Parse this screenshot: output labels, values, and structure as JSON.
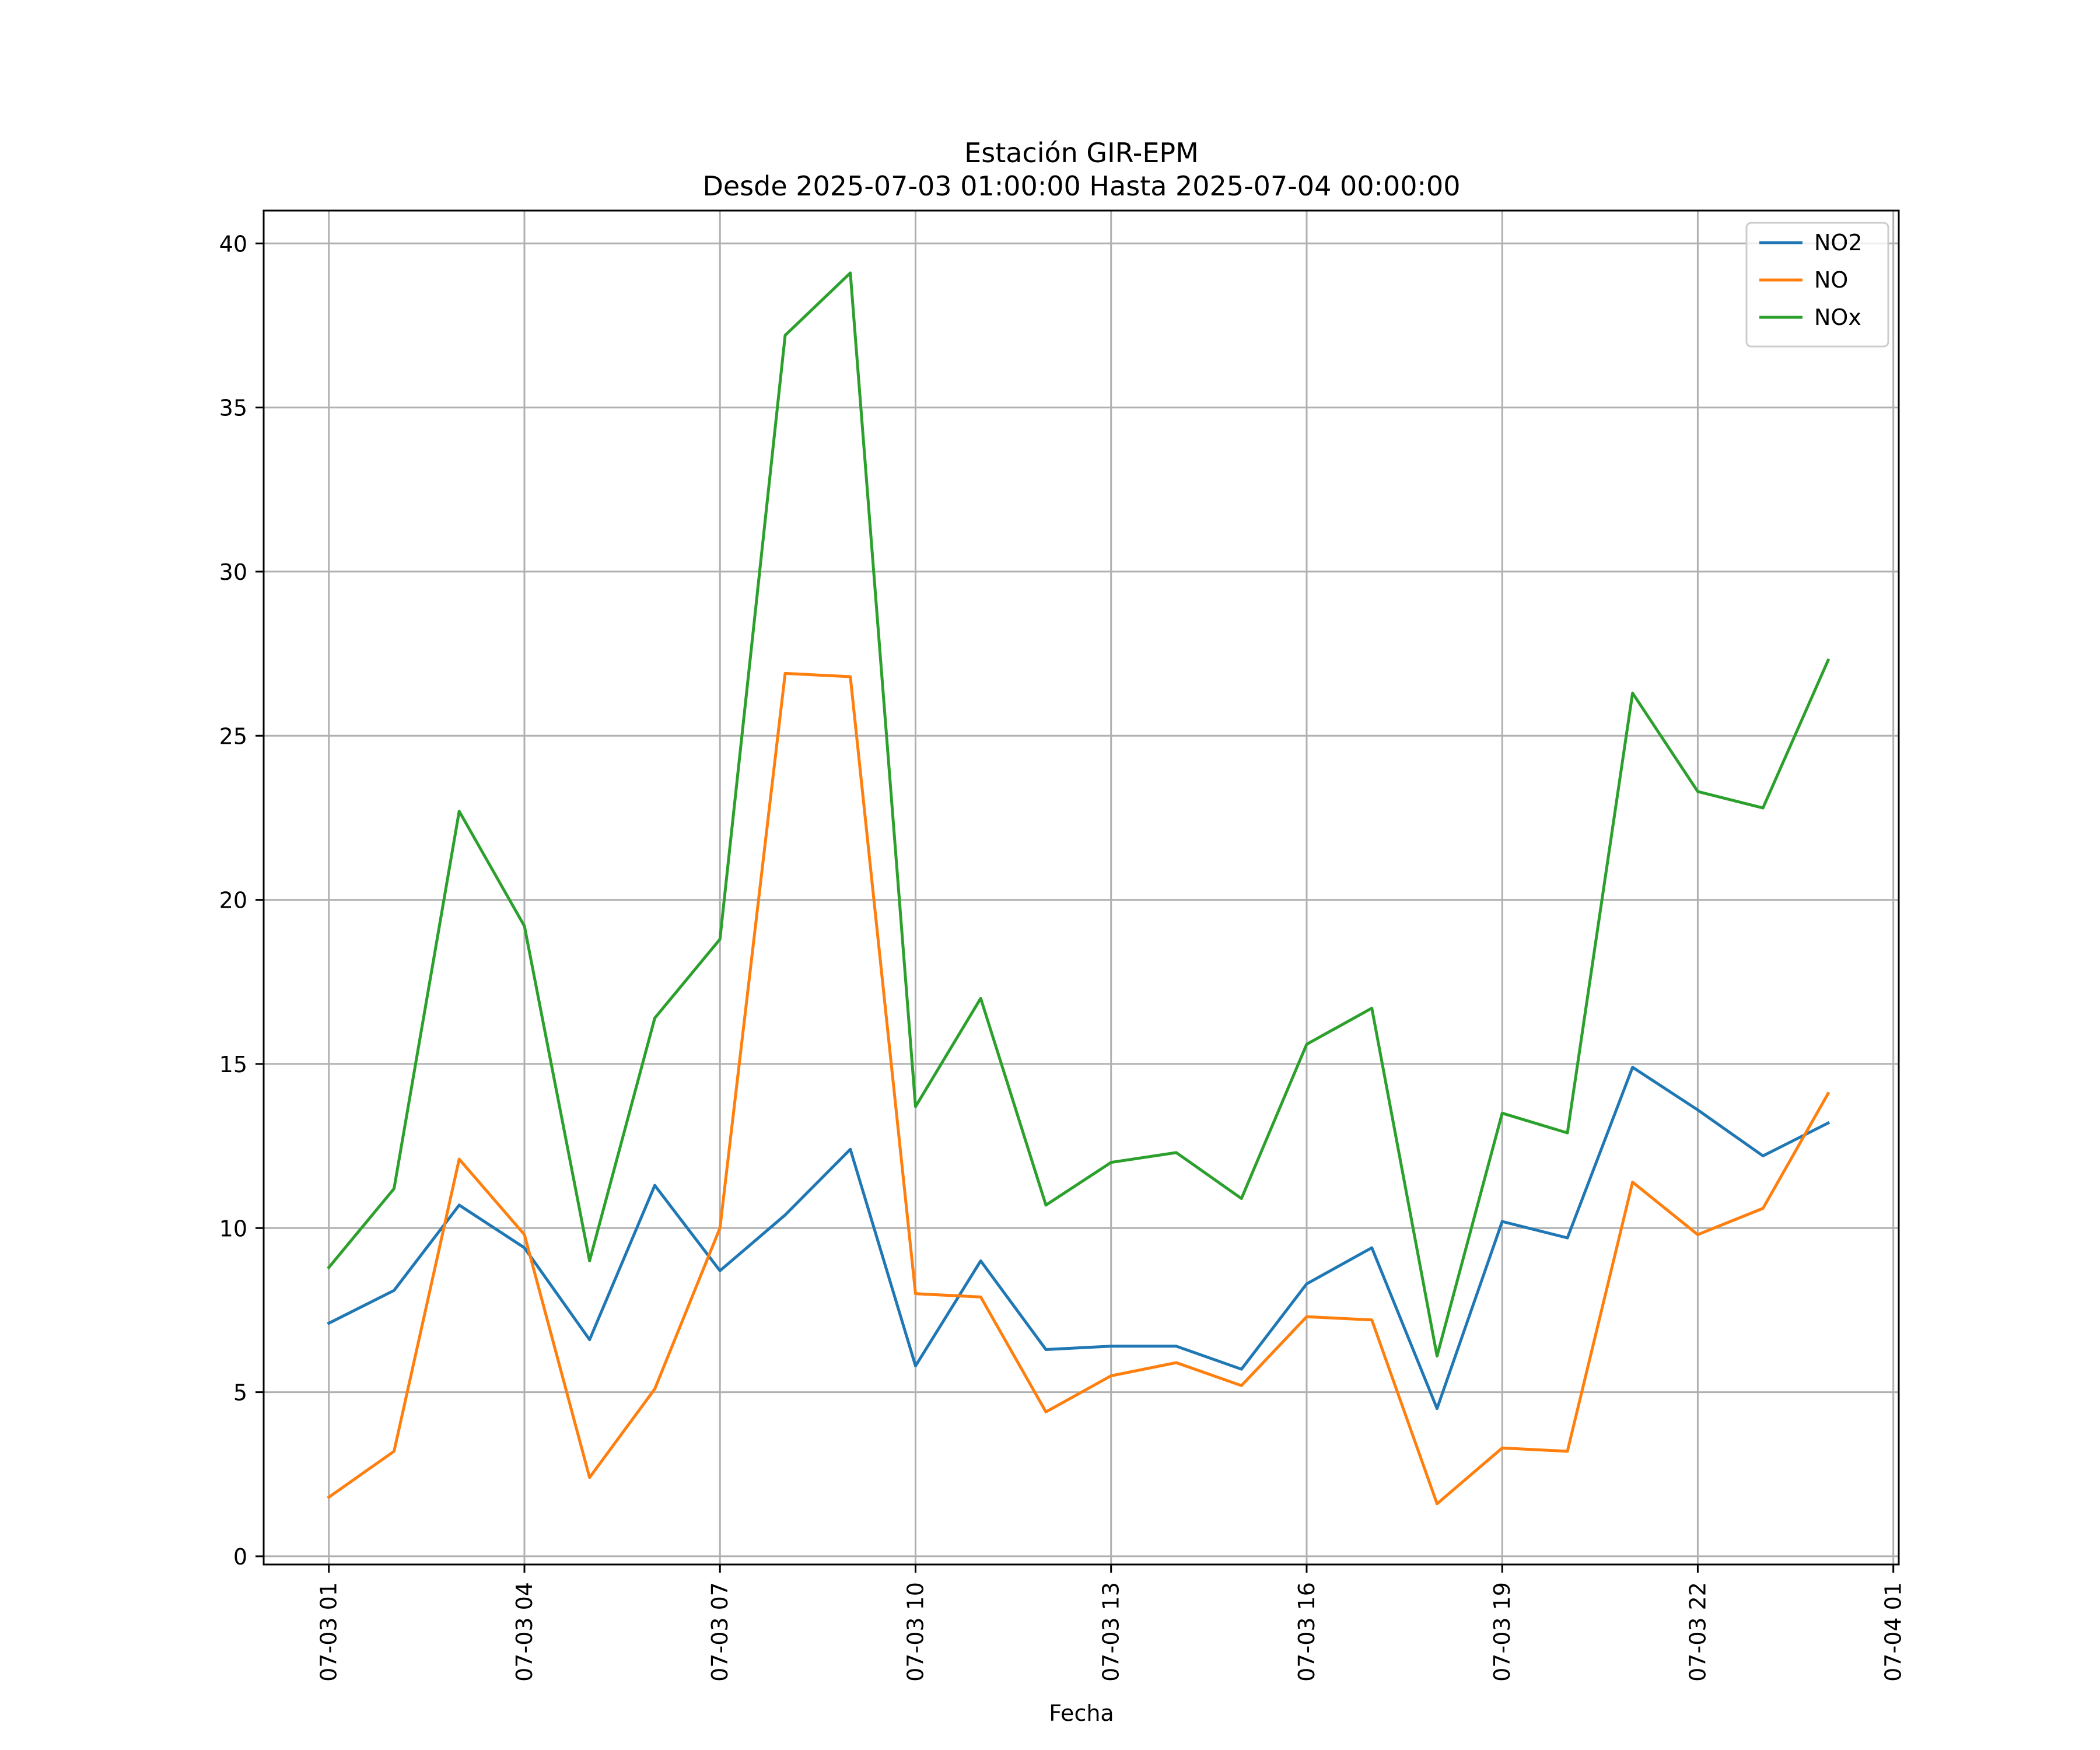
{
  "chart_data": {
    "type": "line",
    "title": "Estación GIR-EPM",
    "subtitle": "Desde 2025-07-03 01:00:00 Hasta 2025-07-04 00:00:00",
    "xlabel": "Fecha",
    "ylabel": "",
    "x": [
      "2025-07-03 01:00",
      "2025-07-03 02:00",
      "2025-07-03 03:00",
      "2025-07-03 04:00",
      "2025-07-03 05:00",
      "2025-07-03 06:00",
      "2025-07-03 07:00",
      "2025-07-03 08:00",
      "2025-07-03 09:00",
      "2025-07-03 10:00",
      "2025-07-03 11:00",
      "2025-07-03 12:00",
      "2025-07-03 13:00",
      "2025-07-03 14:00",
      "2025-07-03 15:00",
      "2025-07-03 16:00",
      "2025-07-03 17:00",
      "2025-07-03 18:00",
      "2025-07-03 19:00",
      "2025-07-03 20:00",
      "2025-07-03 21:00",
      "2025-07-03 22:00",
      "2025-07-03 23:00",
      "2025-07-04 00:00"
    ],
    "xlim": [
      "2025-07-03 00:00",
      "2025-07-04 01:05"
    ],
    "xticks": [
      {
        "at": "2025-07-03 01:00",
        "label": "07-03 01"
      },
      {
        "at": "2025-07-03 04:00",
        "label": "07-03 04"
      },
      {
        "at": "2025-07-03 07:00",
        "label": "07-03 07"
      },
      {
        "at": "2025-07-03 10:00",
        "label": "07-03 10"
      },
      {
        "at": "2025-07-03 13:00",
        "label": "07-03 13"
      },
      {
        "at": "2025-07-03 16:00",
        "label": "07-03 16"
      },
      {
        "at": "2025-07-03 19:00",
        "label": "07-03 19"
      },
      {
        "at": "2025-07-03 22:00",
        "label": "07-03 22"
      },
      {
        "at": "2025-07-04 01:00",
        "label": "07-04 01"
      }
    ],
    "ylim": [
      -0.25,
      41
    ],
    "yticks": [
      0,
      5,
      10,
      15,
      20,
      25,
      30,
      35,
      40
    ],
    "grid": true,
    "legend_position": "top-right",
    "series": [
      {
        "name": "NO2",
        "color": "#1f77b4",
        "values": [
          7.1,
          8.1,
          10.7,
          9.4,
          6.6,
          11.3,
          8.7,
          10.4,
          12.4,
          5.8,
          9.0,
          6.3,
          6.4,
          6.4,
          5.7,
          8.3,
          9.4,
          4.5,
          10.2,
          9.7,
          14.9,
          13.6,
          12.2,
          13.2
        ]
      },
      {
        "name": "NO",
        "color": "#ff7f0e",
        "values": [
          1.8,
          3.2,
          12.1,
          9.8,
          2.4,
          5.1,
          10.0,
          26.9,
          26.8,
          8.0,
          7.9,
          4.4,
          5.5,
          5.9,
          5.2,
          7.3,
          7.2,
          1.6,
          3.3,
          3.2,
          11.4,
          9.8,
          10.6,
          14.1
        ]
      },
      {
        "name": "NOx",
        "color": "#2ca02c",
        "values": [
          8.8,
          11.2,
          22.7,
          19.2,
          9.0,
          16.4,
          18.8,
          37.2,
          39.1,
          13.7,
          17.0,
          10.7,
          12.0,
          12.3,
          10.9,
          15.6,
          16.7,
          6.1,
          13.5,
          12.9,
          26.3,
          23.3,
          22.8,
          27.3
        ]
      }
    ]
  }
}
